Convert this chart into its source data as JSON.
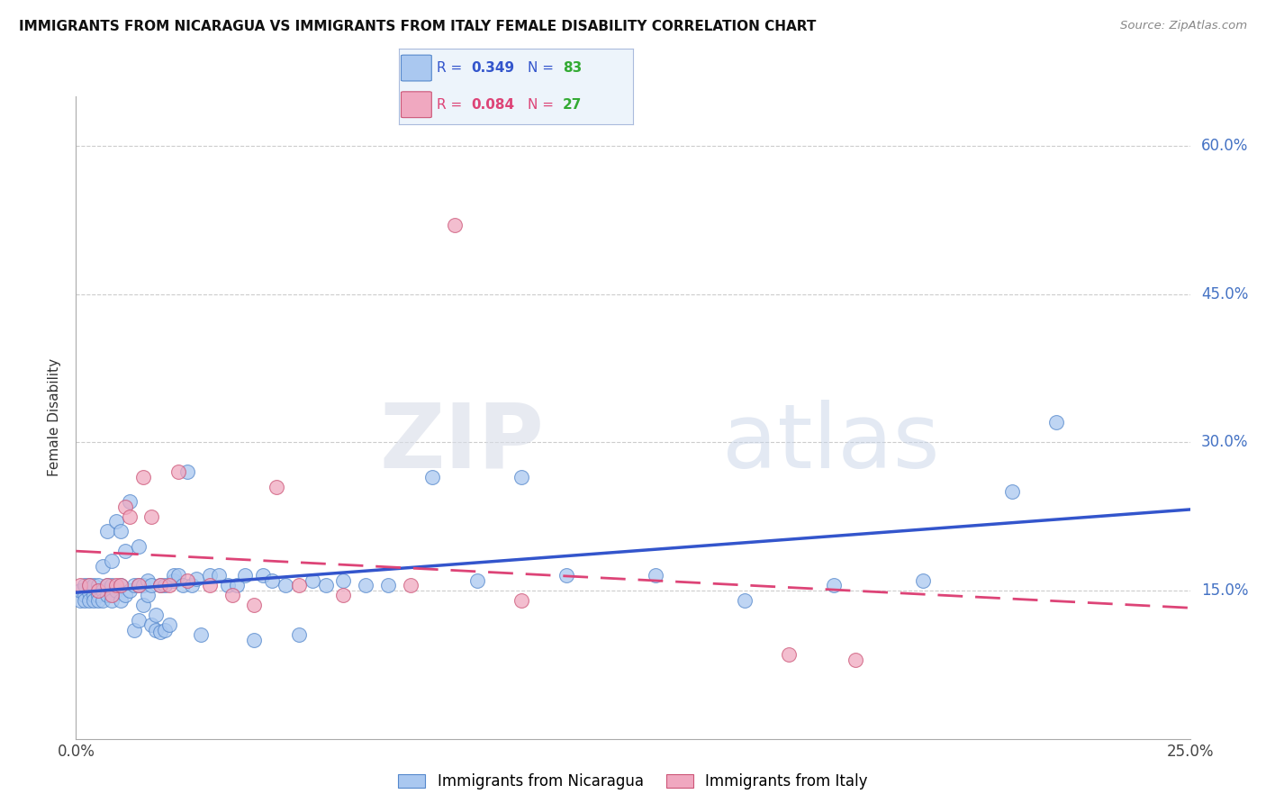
{
  "title": "IMMIGRANTS FROM NICARAGUA VS IMMIGRANTS FROM ITALY FEMALE DISABILITY CORRELATION CHART",
  "source": "Source: ZipAtlas.com",
  "ylabel": "Female Disability",
  "xlim": [
    0.0,
    0.25
  ],
  "ylim": [
    0.0,
    0.65
  ],
  "ytick_labels_right": [
    "15.0%",
    "30.0%",
    "45.0%",
    "60.0%"
  ],
  "ytick_positions_right": [
    0.15,
    0.3,
    0.45,
    0.6
  ],
  "nicaragua_color": "#aac8f0",
  "nicaragua_edge": "#5588cc",
  "italy_color": "#f0a8c0",
  "italy_edge": "#cc5577",
  "nicaragua_R": 0.349,
  "nicaragua_N": 83,
  "italy_R": 0.084,
  "italy_N": 27,
  "blue_line_color": "#3355cc",
  "pink_line_color": "#dd4477",
  "grid_color": "#cccccc",
  "watermark_zip": "ZIP",
  "watermark_atlas": "atlas",
  "nicaragua_x": [
    0.001,
    0.001,
    0.002,
    0.002,
    0.002,
    0.003,
    0.003,
    0.003,
    0.004,
    0.004,
    0.004,
    0.005,
    0.005,
    0.005,
    0.006,
    0.006,
    0.006,
    0.007,
    0.007,
    0.007,
    0.008,
    0.008,
    0.008,
    0.009,
    0.009,
    0.01,
    0.01,
    0.01,
    0.011,
    0.011,
    0.012,
    0.012,
    0.013,
    0.013,
    0.014,
    0.014,
    0.014,
    0.015,
    0.015,
    0.016,
    0.016,
    0.017,
    0.017,
    0.018,
    0.018,
    0.019,
    0.019,
    0.02,
    0.02,
    0.021,
    0.022,
    0.022,
    0.023,
    0.024,
    0.025,
    0.026,
    0.027,
    0.028,
    0.03,
    0.032,
    0.034,
    0.036,
    0.038,
    0.04,
    0.042,
    0.044,
    0.047,
    0.05,
    0.053,
    0.056,
    0.06,
    0.065,
    0.07,
    0.08,
    0.09,
    0.1,
    0.11,
    0.13,
    0.15,
    0.17,
    0.19,
    0.21,
    0.22
  ],
  "nicaragua_y": [
    0.14,
    0.15,
    0.145,
    0.155,
    0.14,
    0.148,
    0.155,
    0.14,
    0.145,
    0.155,
    0.14,
    0.155,
    0.145,
    0.14,
    0.15,
    0.175,
    0.14,
    0.155,
    0.21,
    0.145,
    0.14,
    0.18,
    0.155,
    0.15,
    0.22,
    0.14,
    0.155,
    0.21,
    0.145,
    0.19,
    0.15,
    0.24,
    0.11,
    0.155,
    0.12,
    0.195,
    0.155,
    0.135,
    0.155,
    0.145,
    0.16,
    0.155,
    0.115,
    0.11,
    0.125,
    0.108,
    0.155,
    0.11,
    0.155,
    0.115,
    0.16,
    0.165,
    0.165,
    0.155,
    0.27,
    0.155,
    0.162,
    0.105,
    0.165,
    0.165,
    0.155,
    0.155,
    0.165,
    0.1,
    0.165,
    0.16,
    0.155,
    0.105,
    0.16,
    0.155,
    0.16,
    0.155,
    0.155,
    0.265,
    0.16,
    0.265,
    0.165,
    0.165,
    0.14,
    0.155,
    0.16,
    0.25,
    0.32
  ],
  "italy_x": [
    0.001,
    0.003,
    0.005,
    0.007,
    0.008,
    0.009,
    0.01,
    0.011,
    0.012,
    0.014,
    0.015,
    0.017,
    0.019,
    0.021,
    0.023,
    0.025,
    0.03,
    0.035,
    0.04,
    0.045,
    0.05,
    0.06,
    0.075,
    0.085,
    0.1,
    0.16,
    0.175
  ],
  "italy_y": [
    0.155,
    0.155,
    0.15,
    0.155,
    0.145,
    0.155,
    0.155,
    0.235,
    0.225,
    0.155,
    0.265,
    0.225,
    0.155,
    0.155,
    0.27,
    0.16,
    0.155,
    0.145,
    0.135,
    0.255,
    0.155,
    0.145,
    0.155,
    0.52,
    0.14,
    0.085,
    0.08
  ]
}
